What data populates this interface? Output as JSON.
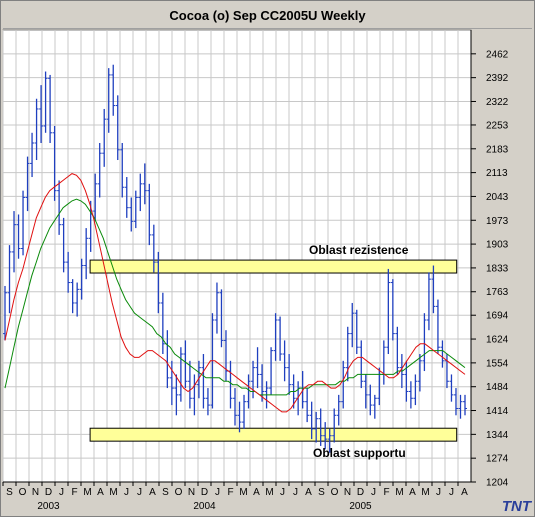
{
  "window": {
    "title": "Cocoa (o) Sep CC2005U Weekly",
    "logo_text": "TNT"
  },
  "colors": {
    "background": "#ffffff",
    "grid": "#c8c8c8",
    "bars": "#1f3fbf",
    "ma_fast": "#e01010",
    "ma_slow": "#0a8a0a",
    "band_fill": "#ffff99",
    "band_stroke": "#000000"
  },
  "chart_data": {
    "type": "bar",
    "title": "Cocoa (o) Sep CC2005U Weekly",
    "ylim": [
      1204,
      2532
    ],
    "y_ticks": [
      1204,
      1274,
      1344,
      1414,
      1484,
      1554,
      1624,
      1694,
      1763,
      1833,
      1903,
      1973,
      2043,
      2113,
      2183,
      2253,
      2322,
      2392,
      2462
    ],
    "x_months": [
      "S",
      "O",
      "N",
      "D",
      "J",
      "F",
      "M",
      "A",
      "M",
      "J",
      "J",
      "A",
      "S",
      "O",
      "N",
      "D",
      "J",
      "F",
      "M",
      "A",
      "M",
      "J",
      "J",
      "A",
      "S",
      "O",
      "N",
      "D",
      "J",
      "F",
      "M",
      "A",
      "M",
      "J",
      "J",
      "A"
    ],
    "x_years": [
      {
        "label": "2003",
        "month_index": 4
      },
      {
        "label": "2004",
        "month_index": 16
      },
      {
        "label": "2005",
        "month_index": 28
      }
    ],
    "grid": true,
    "resistance_zone": {
      "label": "Oblast rezistence",
      "low": 1818,
      "high": 1856,
      "from_month": 6.7,
      "to_month": 34.9
    },
    "support_zone": {
      "label": "Oblast supportu",
      "low": 1324,
      "high": 1362,
      "from_month": 6.7,
      "to_month": 34.9
    },
    "ohlc_weekly": [
      [
        1640,
        1780,
        1620,
        1760
      ],
      [
        1760,
        1900,
        1700,
        1880
      ],
      [
        1880,
        2000,
        1820,
        1960
      ],
      [
        1960,
        1990,
        1860,
        1890
      ],
      [
        1890,
        2060,
        1870,
        2040
      ],
      [
        2040,
        2160,
        2000,
        2140
      ],
      [
        2140,
        2230,
        2100,
        2200
      ],
      [
        2200,
        2330,
        2150,
        2300
      ],
      [
        2300,
        2370,
        2200,
        2250
      ],
      [
        2250,
        2410,
        2230,
        2390
      ],
      [
        2390,
        2400,
        2200,
        2230
      ],
      [
        2230,
        2250,
        2030,
        2060
      ],
      [
        2060,
        2090,
        1930,
        1960
      ],
      [
        1960,
        1980,
        1820,
        1850
      ],
      [
        1850,
        1880,
        1760,
        1790
      ],
      [
        1790,
        1800,
        1700,
        1730
      ],
      [
        1730,
        1790,
        1690,
        1770
      ],
      [
        1770,
        1860,
        1740,
        1840
      ],
      [
        1840,
        1950,
        1800,
        1920
      ],
      [
        1920,
        2030,
        1880,
        2000
      ],
      [
        2000,
        2110,
        1970,
        2080
      ],
      [
        2080,
        2200,
        2040,
        2170
      ],
      [
        2170,
        2300,
        2130,
        2270
      ],
      [
        2270,
        2420,
        2230,
        2400
      ],
      [
        2400,
        2430,
        2280,
        2310
      ],
      [
        2310,
        2340,
        2150,
        2180
      ],
      [
        2180,
        2200,
        2040,
        2070
      ],
      [
        2070,
        2100,
        1980,
        2010
      ],
      [
        2010,
        2040,
        1940,
        1970
      ],
      [
        1970,
        2060,
        1950,
        2040
      ],
      [
        2040,
        2110,
        2000,
        2080
      ],
      [
        2080,
        2140,
        2020,
        2060
      ],
      [
        2060,
        2080,
        1900,
        1930
      ],
      [
        1930,
        1960,
        1820,
        1850
      ],
      [
        1850,
        1880,
        1700,
        1730
      ],
      [
        1730,
        1760,
        1580,
        1610
      ],
      [
        1610,
        1650,
        1480,
        1510
      ],
      [
        1510,
        1560,
        1430,
        1480
      ],
      [
        1480,
        1520,
        1400,
        1460
      ],
      [
        1460,
        1600,
        1440,
        1580
      ],
      [
        1580,
        1620,
        1480,
        1500
      ],
      [
        1500,
        1560,
        1420,
        1450
      ],
      [
        1450,
        1520,
        1400,
        1490
      ],
      [
        1490,
        1560,
        1450,
        1540
      ],
      [
        1540,
        1580,
        1420,
        1450
      ],
      [
        1450,
        1480,
        1400,
        1430
      ],
      [
        1430,
        1700,
        1420,
        1680
      ],
      [
        1680,
        1790,
        1640,
        1760
      ],
      [
        1760,
        1770,
        1600,
        1620
      ],
      [
        1620,
        1650,
        1500,
        1530
      ],
      [
        1530,
        1560,
        1420,
        1450
      ],
      [
        1450,
        1480,
        1370,
        1400
      ],
      [
        1400,
        1440,
        1350,
        1380
      ],
      [
        1380,
        1460,
        1360,
        1440
      ],
      [
        1440,
        1520,
        1420,
        1500
      ],
      [
        1500,
        1560,
        1450,
        1540
      ],
      [
        1540,
        1600,
        1480,
        1520
      ],
      [
        1520,
        1550,
        1440,
        1470
      ],
      [
        1470,
        1500,
        1420,
        1480
      ],
      [
        1480,
        1600,
        1460,
        1590
      ],
      [
        1590,
        1700,
        1560,
        1680
      ],
      [
        1680,
        1690,
        1560,
        1580
      ],
      [
        1580,
        1620,
        1500,
        1540
      ],
      [
        1540,
        1580,
        1460,
        1490
      ],
      [
        1490,
        1520,
        1420,
        1450
      ],
      [
        1450,
        1500,
        1400,
        1480
      ],
      [
        1480,
        1530,
        1420,
        1440
      ],
      [
        1440,
        1480,
        1380,
        1400
      ],
      [
        1400,
        1440,
        1330,
        1360
      ],
      [
        1360,
        1410,
        1320,
        1390
      ],
      [
        1390,
        1420,
        1310,
        1340
      ],
      [
        1340,
        1380,
        1300,
        1330
      ],
      [
        1330,
        1360,
        1290,
        1340
      ],
      [
        1340,
        1420,
        1320,
        1400
      ],
      [
        1400,
        1460,
        1370,
        1440
      ],
      [
        1440,
        1560,
        1420,
        1540
      ],
      [
        1540,
        1660,
        1500,
        1640
      ],
      [
        1640,
        1730,
        1600,
        1700
      ],
      [
        1700,
        1710,
        1580,
        1600
      ],
      [
        1600,
        1620,
        1480,
        1500
      ],
      [
        1500,
        1520,
        1420,
        1460
      ],
      [
        1460,
        1490,
        1400,
        1430
      ],
      [
        1430,
        1460,
        1390,
        1450
      ],
      [
        1450,
        1540,
        1430,
        1520
      ],
      [
        1520,
        1620,
        1490,
        1600
      ],
      [
        1600,
        1830,
        1580,
        1790
      ],
      [
        1790,
        1800,
        1620,
        1640
      ],
      [
        1640,
        1660,
        1520,
        1540
      ],
      [
        1540,
        1580,
        1480,
        1520
      ],
      [
        1520,
        1560,
        1440,
        1470
      ],
      [
        1470,
        1500,
        1420,
        1450
      ],
      [
        1450,
        1520,
        1430,
        1500
      ],
      [
        1500,
        1580,
        1470,
        1560
      ],
      [
        1560,
        1700,
        1530,
        1680
      ],
      [
        1680,
        1820,
        1650,
        1800
      ],
      [
        1800,
        1840,
        1700,
        1720
      ],
      [
        1720,
        1740,
        1580,
        1600
      ],
      [
        1600,
        1620,
        1540,
        1560
      ],
      [
        1560,
        1580,
        1480,
        1500
      ],
      [
        1500,
        1520,
        1440,
        1460
      ],
      [
        1460,
        1480,
        1400,
        1420
      ],
      [
        1420,
        1460,
        1390,
        1440
      ],
      [
        1440,
        1460,
        1400,
        1420
      ]
    ],
    "ma_fast": [
      1620,
      1680,
      1740,
      1790,
      1830,
      1880,
      1930,
      1980,
      2010,
      2040,
      2060,
      2070,
      2080,
      2090,
      2100,
      2110,
      2105,
      2090,
      2060,
      2020,
      1970,
      1910,
      1850,
      1790,
      1730,
      1680,
      1630,
      1600,
      1580,
      1570,
      1570,
      1580,
      1590,
      1590,
      1580,
      1570,
      1560,
      1540,
      1520,
      1500,
      1480,
      1470,
      1480,
      1500,
      1520,
      1540,
      1560,
      1560,
      1550,
      1540,
      1530,
      1520,
      1510,
      1500,
      1490,
      1480,
      1470,
      1460,
      1450,
      1440,
      1430,
      1420,
      1410,
      1410,
      1420,
      1440,
      1460,
      1480,
      1490,
      1490,
      1500,
      1500,
      1490,
      1480,
      1480,
      1490,
      1510,
      1540,
      1560,
      1570,
      1570,
      1560,
      1550,
      1540,
      1530,
      1520,
      1510,
      1510,
      1520,
      1540,
      1560,
      1580,
      1600,
      1610,
      1610,
      1600,
      1590,
      1580,
      1570,
      1560,
      1550,
      1540,
      1530,
      1520
    ],
    "ma_slow": [
      1480,
      1540,
      1600,
      1660,
      1710,
      1760,
      1810,
      1850,
      1890,
      1920,
      1950,
      1970,
      1990,
      2010,
      2020,
      2030,
      2035,
      2030,
      2020,
      2000,
      1980,
      1950,
      1920,
      1880,
      1840,
      1800,
      1770,
      1740,
      1720,
      1700,
      1690,
      1680,
      1670,
      1660,
      1640,
      1630,
      1610,
      1600,
      1580,
      1570,
      1560,
      1550,
      1540,
      1530,
      1520,
      1510,
      1510,
      1510,
      1510,
      1500,
      1500,
      1490,
      1490,
      1480,
      1480,
      1470,
      1470,
      1460,
      1460,
      1460,
      1460,
      1460,
      1460,
      1460,
      1470,
      1470,
      1480,
      1480,
      1480,
      1490,
      1490,
      1490,
      1490,
      1490,
      1490,
      1500,
      1500,
      1510,
      1510,
      1520,
      1520,
      1520,
      1520,
      1520,
      1520,
      1520,
      1520,
      1520,
      1530,
      1530,
      1540,
      1550,
      1560,
      1570,
      1580,
      1590,
      1590,
      1590,
      1590,
      1580,
      1570,
      1560,
      1550,
      1540
    ]
  }
}
